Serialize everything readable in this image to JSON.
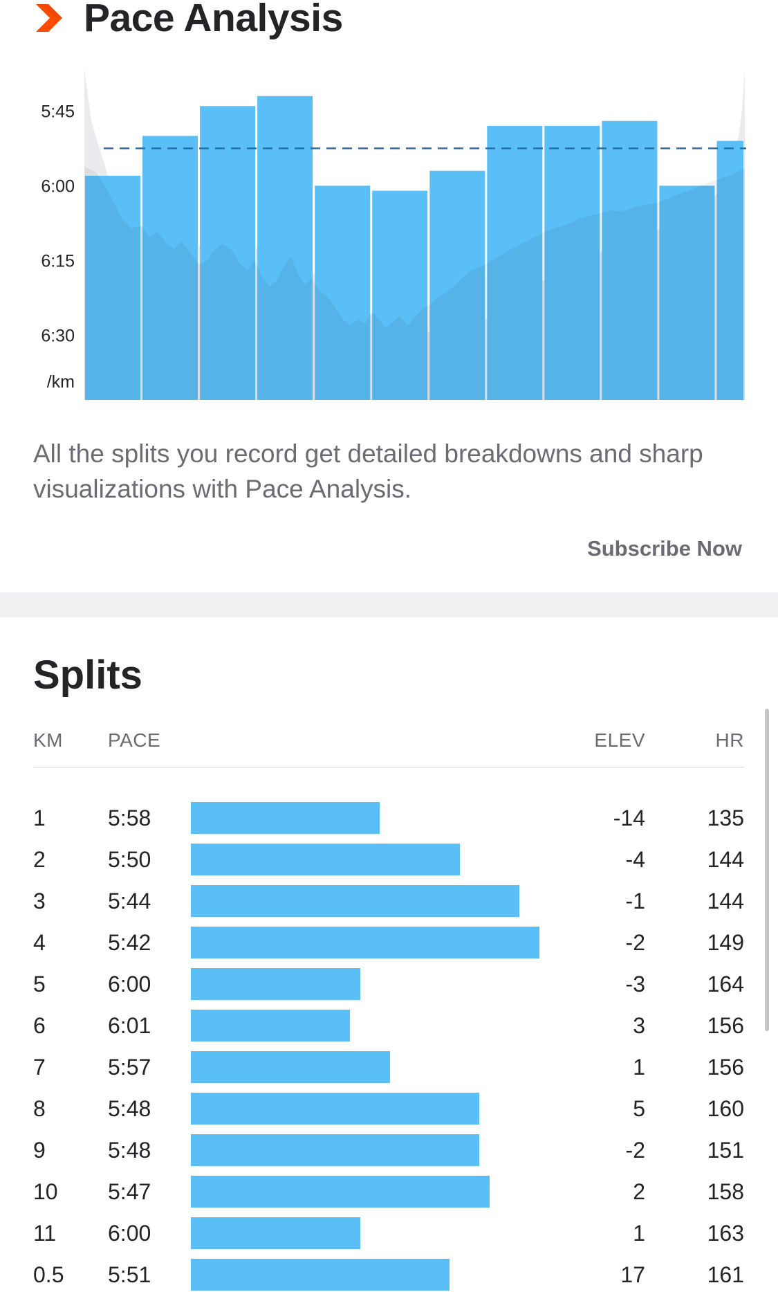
{
  "header": {
    "title": "Pace Analysis",
    "logo_icon": "chevron-right-icon",
    "accent_color": "#fc4c02"
  },
  "chart_data": {
    "type": "bar",
    "title": "",
    "ylabel": "/km",
    "y_tick_labels": [
      "5:45",
      "6:00",
      "6:15",
      "6:30"
    ],
    "y_ticks_seconds": [
      345,
      360,
      375,
      390
    ],
    "ylim_seconds": [
      338,
      403
    ],
    "reversed_axis": true,
    "average_line_seconds": 352.5,
    "bar_color": "#5bbff7",
    "average_line_color": "#2f6fa6",
    "categories": [
      "1",
      "2",
      "3",
      "4",
      "5",
      "6",
      "7",
      "8",
      "9",
      "10",
      "11",
      "0.5"
    ],
    "values_seconds": [
      358,
      350,
      344,
      342,
      360,
      361,
      357,
      348,
      348,
      347,
      360,
      351
    ],
    "category_widths_km": [
      1,
      1,
      1,
      1,
      1,
      1,
      1,
      1,
      1,
      1,
      1,
      0.5
    ]
  },
  "description": "All the splits you record get detailed breakdowns and sharp visualizations with Pace Analysis.",
  "subscribe_label": "Subscribe Now",
  "splits": {
    "title": "Splits",
    "headers": {
      "km": "KM",
      "pace": "PACE",
      "elev": "ELEV",
      "hr": "HR"
    },
    "bar_color": "#5bbff7",
    "rows": [
      {
        "km": "1",
        "pace": "5:58",
        "pace_seconds": 358,
        "elev": "-14",
        "hr": "135"
      },
      {
        "km": "2",
        "pace": "5:50",
        "pace_seconds": 350,
        "elev": "-4",
        "hr": "144"
      },
      {
        "km": "3",
        "pace": "5:44",
        "pace_seconds": 344,
        "elev": "-1",
        "hr": "144"
      },
      {
        "km": "4",
        "pace": "5:42",
        "pace_seconds": 342,
        "elev": "-2",
        "hr": "149"
      },
      {
        "km": "5",
        "pace": "6:00",
        "pace_seconds": 360,
        "elev": "-3",
        "hr": "164"
      },
      {
        "km": "6",
        "pace": "6:01",
        "pace_seconds": 361,
        "elev": "3",
        "hr": "156"
      },
      {
        "km": "7",
        "pace": "5:57",
        "pace_seconds": 357,
        "elev": "1",
        "hr": "156"
      },
      {
        "km": "8",
        "pace": "5:48",
        "pace_seconds": 348,
        "elev": "5",
        "hr": "160"
      },
      {
        "km": "9",
        "pace": "5:48",
        "pace_seconds": 348,
        "elev": "-2",
        "hr": "151"
      },
      {
        "km": "10",
        "pace": "5:47",
        "pace_seconds": 347,
        "elev": "2",
        "hr": "158"
      },
      {
        "km": "11",
        "pace": "6:00",
        "pace_seconds": 360,
        "elev": "1",
        "hr": "163"
      },
      {
        "km": "0.5",
        "pace": "5:51",
        "pace_seconds": 351,
        "elev": "17",
        "hr": "161"
      }
    ]
  }
}
